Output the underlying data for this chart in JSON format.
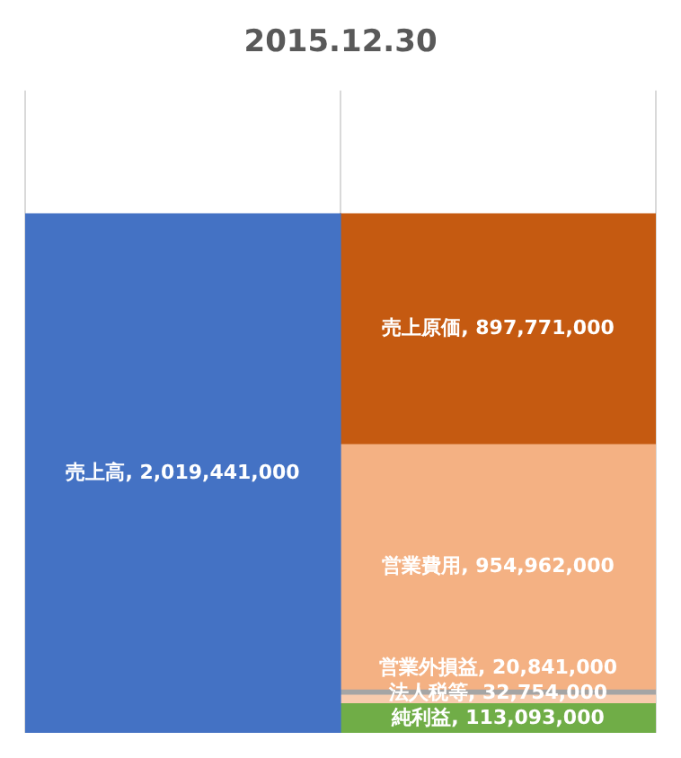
{
  "chart_data": {
    "type": "bar",
    "title": "2015.12.30",
    "categories": [
      null,
      null
    ],
    "stacked": true,
    "legend": false,
    "grid": "x",
    "tick_labels": false,
    "series": [
      {
        "name": "売上高,",
        "color": "#4472c4",
        "values": [
          2019441000,
          null
        ],
        "value_labels": [
          "2,019,441,000",
          null
        ]
      },
      {
        "name": "純利益,",
        "color": "#70ad47",
        "values": [
          null,
          113093000
        ],
        "value_labels": [
          null,
          "113,093,000"
        ]
      },
      {
        "name": "法人税等,",
        "color": "#f8cbad",
        "values": [
          null,
          32754000
        ],
        "value_labels": [
          null,
          "32,754,000"
        ]
      },
      {
        "name": "営業外損益,",
        "color": "#a5a5a5",
        "values": [
          null,
          20841000
        ],
        "value_labels": [
          null,
          "20,841,000"
        ]
      },
      {
        "name": "営業費用,",
        "color": "#f4b183",
        "values": [
          null,
          954962000
        ],
        "value_labels": [
          null,
          "954,962,000"
        ]
      },
      {
        "name": "売上原価,",
        "color": "#c55a11",
        "values": [
          null,
          897771000
        ],
        "value_labels": [
          null,
          "897,771,000"
        ]
      }
    ]
  }
}
